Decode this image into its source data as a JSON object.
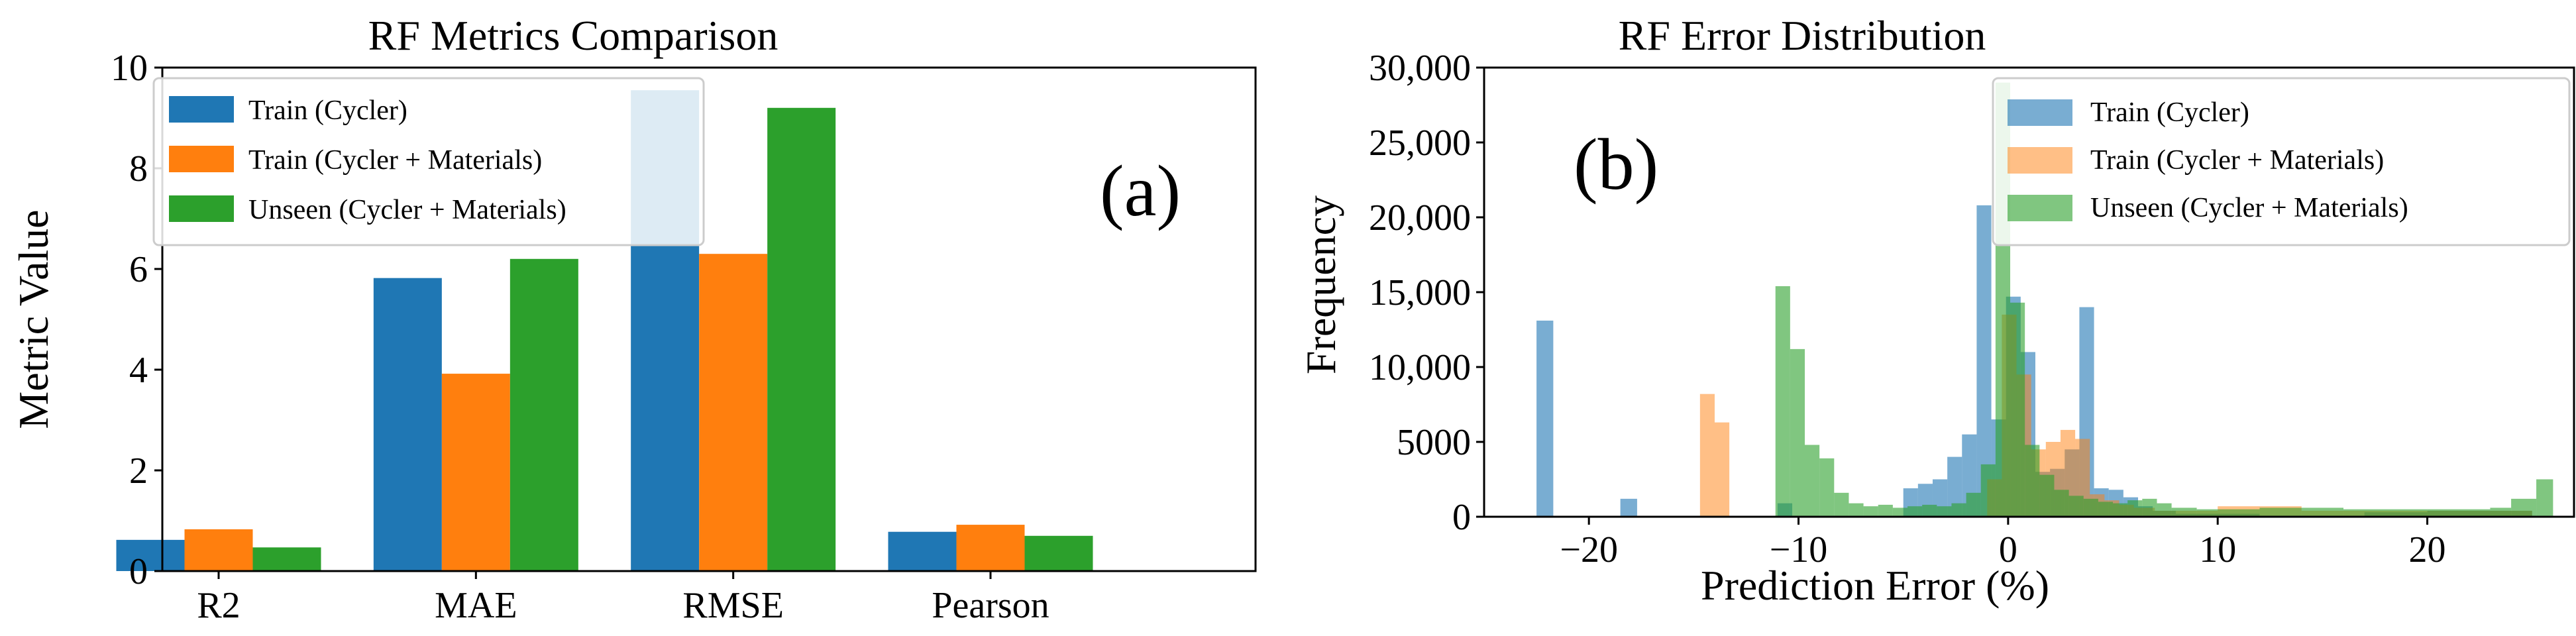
{
  "chart_data": [
    {
      "type": "bar",
      "title": "RF Metrics Comparison",
      "xlabel": "",
      "ylabel": "Metric Value",
      "annotation": "(a)",
      "categories": [
        "R2",
        "MAE",
        "RMSE",
        "Pearson"
      ],
      "ylim": [
        0,
        10
      ],
      "yticks": [
        "0",
        "2",
        "4",
        "6",
        "8",
        "10"
      ],
      "legend_position": "upper-left",
      "series": [
        {
          "name": "Train (Cycler)",
          "color": "#1f77b4",
          "values": [
            0.62,
            5.82,
            9.55,
            0.78
          ]
        },
        {
          "name": "Train (Cycler + Materials)",
          "color": "#ff7f0e",
          "values": [
            0.83,
            3.92,
            6.3,
            0.92
          ]
        },
        {
          "name": "Unseen (Cycler + Materials)",
          "color": "#2ca02c",
          "values": [
            0.47,
            6.2,
            9.2,
            0.7
          ]
        }
      ]
    },
    {
      "type": "histogram",
      "title": "RF Error Distribution",
      "xlabel": "Prediction Error (%)",
      "ylabel": "Frequency",
      "annotation": "(b)",
      "xlim": [
        -25,
        27
      ],
      "ylim": [
        0,
        30000
      ],
      "xticks": [
        -20,
        -10,
        0,
        10,
        20
      ],
      "xtick_labels": [
        "−20",
        "−10",
        "0",
        "10",
        "20"
      ],
      "yticks": [
        0,
        5000,
        10000,
        15000,
        20000,
        25000,
        30000
      ],
      "ytick_labels": [
        "0",
        "5000",
        "10,000",
        "15,000",
        "20,000",
        "25,000",
        "30,000"
      ],
      "legend_position": "upper-right",
      "series": [
        {
          "name": "Train (Cycler)",
          "color": "#1f77b4",
          "opacity": 0.6,
          "bins": [
            [
              -22.5,
              -21.7,
              13100
            ],
            [
              -18.5,
              -17.7,
              1200
            ],
            [
              -11,
              -10.3,
              900
            ],
            [
              -5,
              -4.3,
              1900
            ],
            [
              -4.3,
              -3.6,
              2200
            ],
            [
              -3.6,
              -2.9,
              2500
            ],
            [
              -2.9,
              -2.2,
              4000
            ],
            [
              -2.2,
              -1.5,
              5500
            ],
            [
              -1.5,
              -0.8,
              20800
            ],
            [
              -0.8,
              -0.1,
              6500
            ],
            [
              -0.1,
              0.6,
              14700
            ],
            [
              0.6,
              1.3,
              11000
            ],
            [
              1.3,
              2,
              3000
            ],
            [
              2,
              2.7,
              3200
            ],
            [
              2.7,
              3.4,
              4500
            ],
            [
              3.4,
              4.1,
              14000
            ],
            [
              4.1,
              4.8,
              1900
            ],
            [
              4.8,
              5.5,
              1800
            ],
            [
              5.5,
              6.2,
              1300
            ],
            [
              6.2,
              6.9,
              700
            ],
            [
              6.9,
              8,
              400
            ],
            [
              8,
              12,
              200
            ],
            [
              17,
              20,
              300
            ],
            [
              20,
              25,
              400
            ]
          ]
        },
        {
          "name": "Train (Cycler + Materials)",
          "color": "#ff7f0e",
          "opacity": 0.5,
          "bins": [
            [
              -14.7,
              -14,
              8200
            ],
            [
              -14,
              -13.3,
              6300
            ],
            [
              -1,
              -0.3,
              2500
            ],
            [
              -0.3,
              0.4,
              13500
            ],
            [
              0.4,
              1.1,
              9500
            ],
            [
              1.1,
              1.8,
              4500
            ],
            [
              1.8,
              2.5,
              5000
            ],
            [
              2.5,
              3.2,
              5800
            ],
            [
              3.2,
              3.9,
              5200
            ],
            [
              3.9,
              4.6,
              1500
            ],
            [
              4.6,
              5.3,
              1100
            ],
            [
              5.3,
              6,
              800
            ],
            [
              6,
              7,
              600
            ],
            [
              7,
              10,
              400
            ],
            [
              10,
              14,
              700
            ],
            [
              14,
              20,
              400
            ],
            [
              20,
              25,
              400
            ]
          ]
        },
        {
          "name": "Unseen (Cycler + Materials)",
          "color": "#2ca02c",
          "opacity": 0.6,
          "bins": [
            [
              -11.1,
              -10.4,
              15400
            ],
            [
              -10.4,
              -9.7,
              11200
            ],
            [
              -9.7,
              -9,
              4800
            ],
            [
              -9,
              -8.3,
              3900
            ],
            [
              -8.3,
              -7.6,
              1600
            ],
            [
              -7.6,
              -6.9,
              900
            ],
            [
              -6.9,
              -6.2,
              700
            ],
            [
              -6.2,
              -5.5,
              800
            ],
            [
              -5.5,
              -4.8,
              600
            ],
            [
              -4.8,
              -4.1,
              700
            ],
            [
              -4.1,
              -3.4,
              800
            ],
            [
              -3.4,
              -2.7,
              700
            ],
            [
              -2.7,
              -2,
              900
            ],
            [
              -2,
              -1.3,
              1600
            ],
            [
              -1.3,
              -0.6,
              3500
            ],
            [
              -0.6,
              0.1,
              29000
            ],
            [
              0.1,
              0.8,
              14300
            ],
            [
              0.8,
              1.5,
              4800
            ],
            [
              1.5,
              2.2,
              2800
            ],
            [
              2.2,
              2.9,
              1800
            ],
            [
              2.9,
              3.6,
              1400
            ],
            [
              3.6,
              4.3,
              1200
            ],
            [
              4.3,
              5,
              1000
            ],
            [
              5,
              5.7,
              900
            ],
            [
              5.7,
              6.4,
              1100
            ],
            [
              6.4,
              7.1,
              1200
            ],
            [
              7.1,
              7.8,
              900
            ],
            [
              7.8,
              9,
              600
            ],
            [
              9,
              12,
              500
            ],
            [
              12,
              16,
              600
            ],
            [
              16,
              20,
              500
            ],
            [
              20,
              23,
              500
            ],
            [
              23,
              24,
              600
            ],
            [
              24,
              25.2,
              1200
            ],
            [
              25.2,
              26,
              2500
            ]
          ]
        }
      ]
    }
  ]
}
